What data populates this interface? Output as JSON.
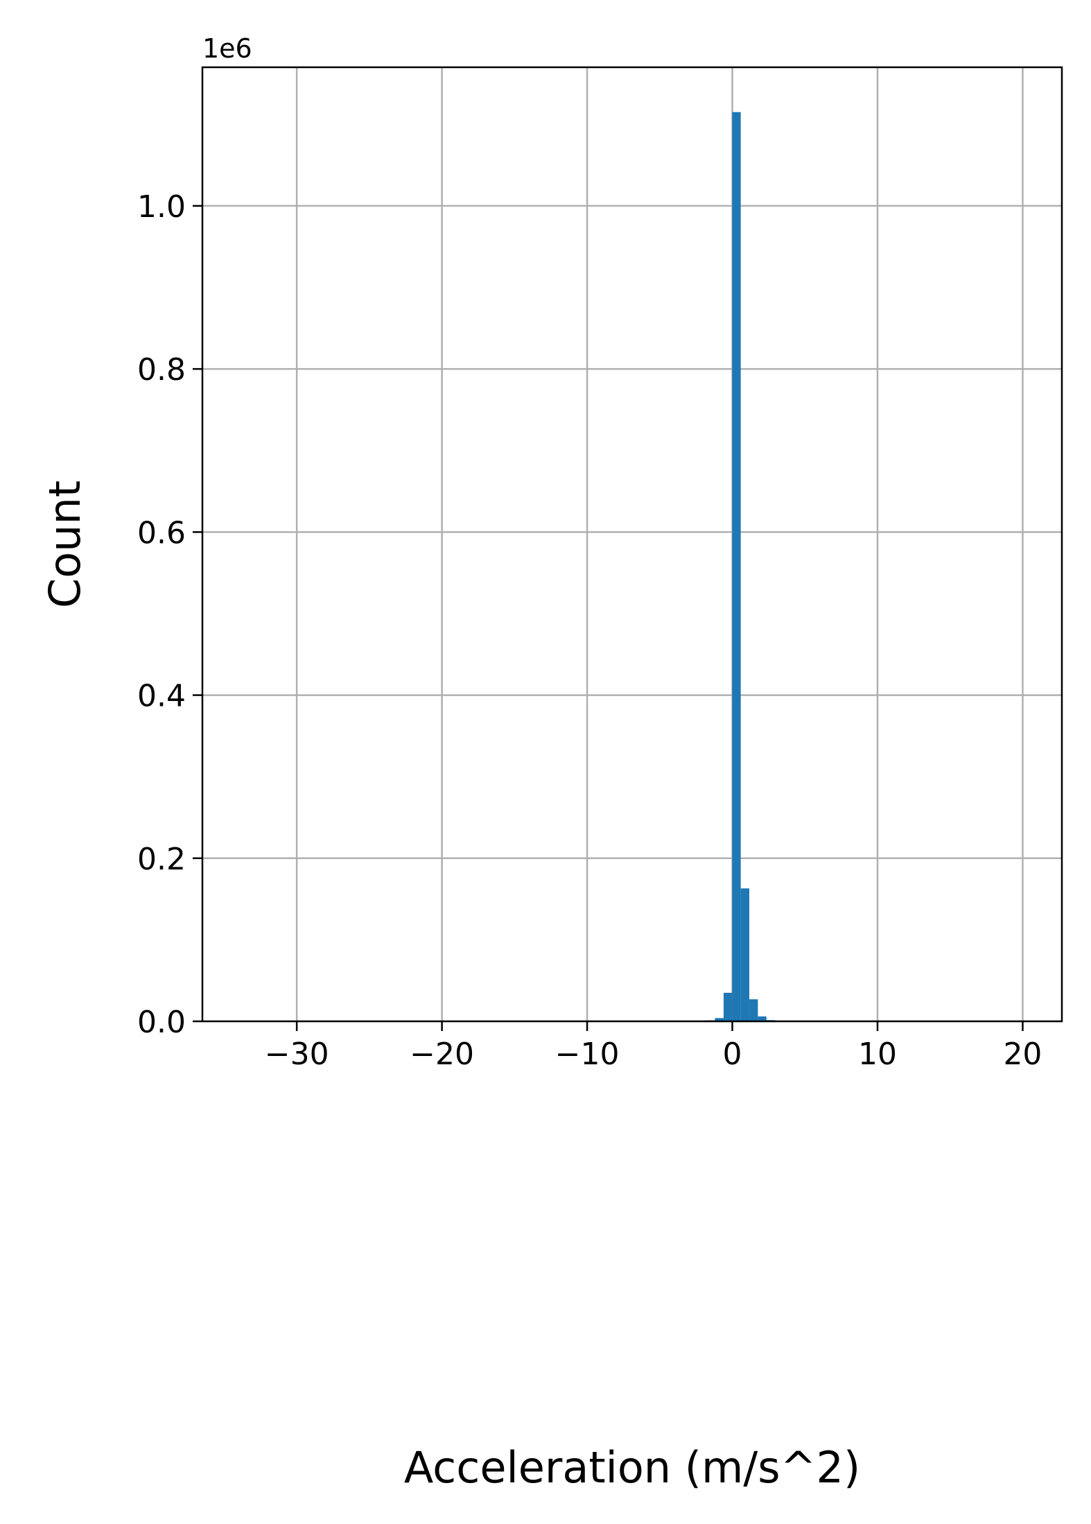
{
  "chart_data": {
    "type": "bar",
    "title": "",
    "xlabel": "Acceleration (m/s^2)",
    "ylabel": "Count",
    "y_offset_label": "1e6",
    "y_scale_factor": 1000000,
    "xlim": [
      -36.5,
      22.7
    ],
    "ylim": [
      0,
      1170000
    ],
    "x_ticks": [
      -30,
      -20,
      -10,
      0,
      10,
      20
    ],
    "x_tick_labels": [
      "−30",
      "−20",
      "−10",
      "0",
      "10",
      "20"
    ],
    "y_ticks": [
      0,
      200000,
      400000,
      600000,
      800000,
      1000000
    ],
    "y_tick_labels": [
      "0.0",
      "0.2",
      "0.4",
      "0.6",
      "0.8",
      "1.0"
    ],
    "grid": true,
    "bar_color": "#1f77b4",
    "bins": [
      {
        "x0": -1.8,
        "x1": -1.2,
        "value": 1000
      },
      {
        "x0": -1.2,
        "x1": -0.6,
        "value": 4000
      },
      {
        "x0": -0.6,
        "x1": -0.01,
        "value": 35000
      },
      {
        "x0": -0.01,
        "x1": 0.58,
        "value": 1115000
      },
      {
        "x0": 0.58,
        "x1": 1.17,
        "value": 163000
      },
      {
        "x0": 1.17,
        "x1": 1.76,
        "value": 27000
      },
      {
        "x0": 1.76,
        "x1": 2.35,
        "value": 6000
      },
      {
        "x0": 2.35,
        "x1": 2.94,
        "value": 1500
      }
    ]
  }
}
